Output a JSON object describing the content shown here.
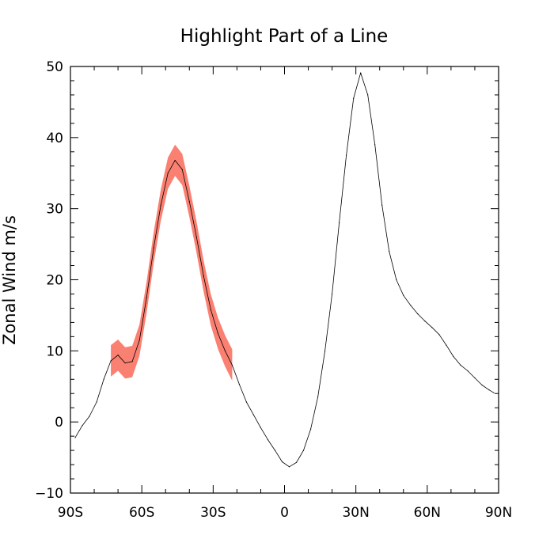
{
  "chart_data": {
    "type": "line",
    "title": "Highlight Part of a Line",
    "ylabel": "Zonal Wind m/s",
    "xlabel": "",
    "xlim": [
      -90,
      90
    ],
    "ylim": [
      -10,
      50
    ],
    "x_ticks": [
      {
        "value": -90,
        "label": "90S"
      },
      {
        "value": -60,
        "label": "60S"
      },
      {
        "value": -30,
        "label": "30S"
      },
      {
        "value": 0,
        "label": "0"
      },
      {
        "value": 30,
        "label": "30N"
      },
      {
        "value": 60,
        "label": "60N"
      },
      {
        "value": 90,
        "label": "90N"
      }
    ],
    "y_ticks": [
      {
        "value": -10,
        "label": "−10"
      },
      {
        "value": 0,
        "label": "0"
      },
      {
        "value": 10,
        "label": "10"
      },
      {
        "value": 20,
        "label": "20"
      },
      {
        "value": 30,
        "label": "30"
      },
      {
        "value": 40,
        "label": "40"
      },
      {
        "value": 50,
        "label": "50"
      }
    ],
    "series": [
      {
        "line_color": "#000000",
        "highlight_color": "#fa8072",
        "highlight_range": [
          -75,
          -21
        ],
        "x": [
          -88,
          -85,
          -82,
          -79,
          -76,
          -73,
          -70,
          -67,
          -64,
          -61,
          -58,
          -55,
          -52,
          -49,
          -46,
          -43,
          -40,
          -37,
          -34,
          -31,
          -28,
          -25,
          -22,
          -19,
          -16,
          -13,
          -10,
          -7,
          -4,
          -1,
          2,
          5,
          8,
          11,
          14,
          17,
          20,
          23,
          26,
          29,
          32,
          35,
          38,
          41,
          44,
          47,
          50,
          53,
          56,
          59,
          62,
          65,
          68,
          71,
          74,
          77,
          80,
          83,
          86,
          88
        ],
        "y": [
          -2.2,
          -0.5,
          0.8,
          2.8,
          6.0,
          8.6,
          9.4,
          8.3,
          8.5,
          11.5,
          17.5,
          24.5,
          30.5,
          35.0,
          36.8,
          35.5,
          31.0,
          26.0,
          20.5,
          15.8,
          12.5,
          10.0,
          8.0,
          5.3,
          2.8,
          1.0,
          -0.8,
          -2.5,
          -4.0,
          -5.6,
          -6.3,
          -5.7,
          -4.0,
          -1.0,
          3.5,
          10.0,
          18.0,
          28.0,
          37.5,
          45.5,
          49.1,
          46.0,
          39.0,
          30.5,
          24.0,
          20.0,
          17.8,
          16.4,
          15.2,
          14.2,
          13.3,
          12.3,
          10.8,
          9.2,
          8.0,
          7.2,
          6.2,
          5.2,
          4.5,
          4.1
        ]
      }
    ]
  }
}
